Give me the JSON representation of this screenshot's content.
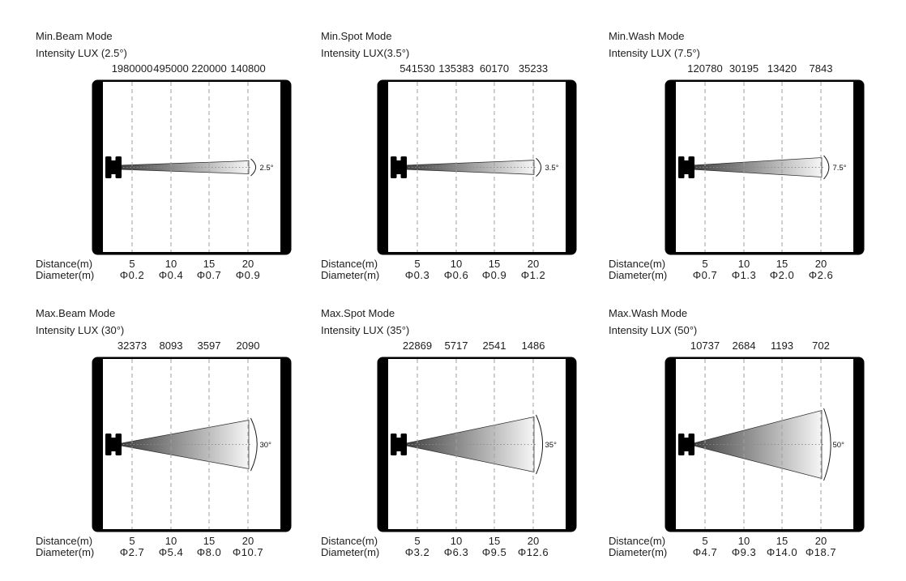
{
  "page": {
    "background": "#ffffff"
  },
  "chart_data": {
    "type": "beam-photometric-diagram",
    "layout": {
      "grid": "2 rows x 3 columns",
      "gridlines": "dashed-vertical",
      "beam_direction": "left-to-right"
    },
    "x_axis": {
      "label": "Distance(m)",
      "ticks": [
        5,
        10,
        15,
        20
      ]
    },
    "distance_label": "Distance(m)",
    "diameter_label": "Diameter(m)",
    "distances_m": [
      5,
      10,
      15,
      20
    ],
    "colors": {
      "frame": "#000000",
      "grid_dash": "#9f9f9f",
      "beam_dark": "#3f3f3f",
      "beam_light": "#f6f6f6",
      "text": "#1d1d1d"
    },
    "panels": [
      {
        "title": "Min.Beam Mode",
        "subtitle": "Intensity LUX (2.5°)",
        "beam_angle_deg": 2.5,
        "angle_label": "2.5°",
        "intensity_lux": [
          1980000,
          495000,
          220000,
          140800
        ],
        "diameters_m": [
          0.2,
          0.4,
          0.7,
          0.9
        ],
        "diameter_labels": [
          "Φ0.2",
          "Φ0.4",
          "Φ0.7",
          "Φ0.9"
        ]
      },
      {
        "title": "Min.Spot Mode",
        "subtitle": "Intensity LUX(3.5°)",
        "beam_angle_deg": 3.5,
        "angle_label": "3.5°",
        "intensity_lux": [
          541530,
          135383,
          60170,
          35233
        ],
        "diameters_m": [
          0.3,
          0.6,
          0.9,
          1.2
        ],
        "diameter_labels": [
          "Φ0.3",
          "Φ0.6",
          "Φ0.9",
          "Φ1.2"
        ]
      },
      {
        "title": "Min.Wash Mode",
        "subtitle": "Intensity LUX (7.5°)",
        "beam_angle_deg": 7.5,
        "angle_label": "7.5°",
        "intensity_lux": [
          120780,
          30195,
          13420,
          7843
        ],
        "diameters_m": [
          0.7,
          1.3,
          2.0,
          2.6
        ],
        "diameter_labels": [
          "Φ0.7",
          "Φ1.3",
          "Φ2.0",
          "Φ2.6"
        ]
      },
      {
        "title": "Max.Beam Mode",
        "subtitle": "Intensity LUX (30°)",
        "beam_angle_deg": 30,
        "angle_label": "30°",
        "intensity_lux": [
          32373,
          8093,
          3597,
          2090
        ],
        "diameters_m": [
          2.7,
          5.4,
          8.0,
          10.7
        ],
        "diameter_labels": [
          "Φ2.7",
          "Φ5.4",
          "Φ8.0",
          "Φ10.7"
        ]
      },
      {
        "title": "Max.Spot Mode",
        "subtitle": "Intensity LUX (35°)",
        "beam_angle_deg": 35,
        "angle_label": "35°",
        "intensity_lux": [
          22869,
          5717,
          2541,
          1486
        ],
        "diameters_m": [
          3.2,
          6.3,
          9.5,
          12.6
        ],
        "diameter_labels": [
          "Φ3.2",
          "Φ6.3",
          "Φ9.5",
          "Φ12.6"
        ]
      },
      {
        "title": "Max.Wash Mode",
        "subtitle": "Intensity LUX (50°)",
        "beam_angle_deg": 50,
        "angle_label": "50°",
        "intensity_lux": [
          10737,
          2684,
          1193,
          702
        ],
        "diameters_m": [
          4.7,
          9.3,
          14.0,
          18.7
        ],
        "diameter_labels": [
          "Φ4.7",
          "Φ9.3",
          "Φ14.0",
          "Φ18.7"
        ]
      }
    ]
  }
}
